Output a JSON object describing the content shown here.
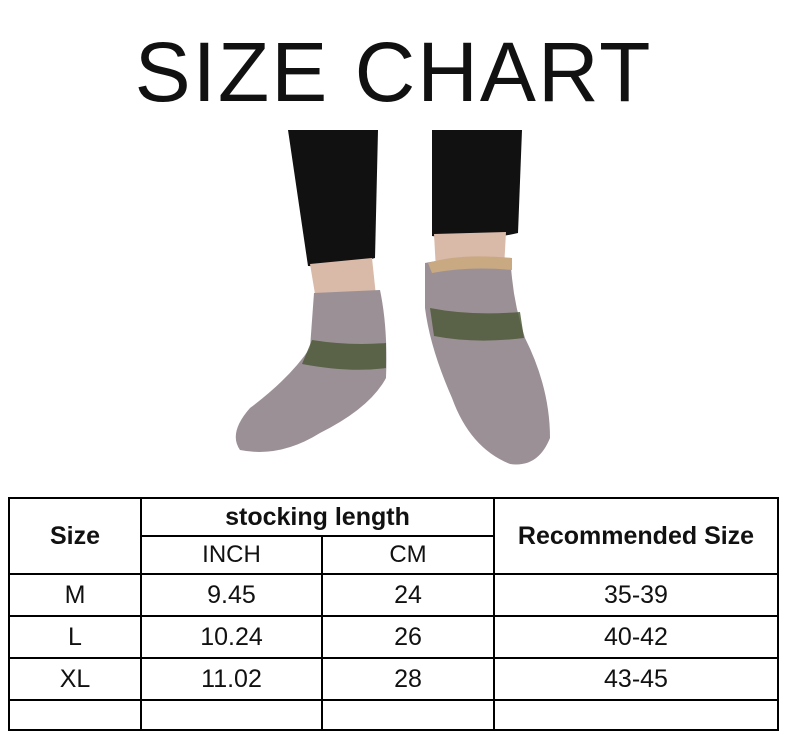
{
  "title": "SIZE CHART",
  "table": {
    "headers": {
      "size": "Size",
      "group": "stocking length",
      "inch": "INCH",
      "cm": "CM",
      "recommended": "Recommended Size"
    },
    "rows": [
      {
        "size": "M",
        "inch": "9.45",
        "cm": "24",
        "recommended": "35-39"
      },
      {
        "size": "L",
        "inch": "10.24",
        "cm": "26",
        "recommended": "40-42"
      },
      {
        "size": "XL",
        "inch": "11.02",
        "cm": "28",
        "recommended": "43-45"
      }
    ]
  },
  "colors": {
    "sock": "#9b9096",
    "pants": "#111111",
    "pattern": "#4f5a3a"
  }
}
